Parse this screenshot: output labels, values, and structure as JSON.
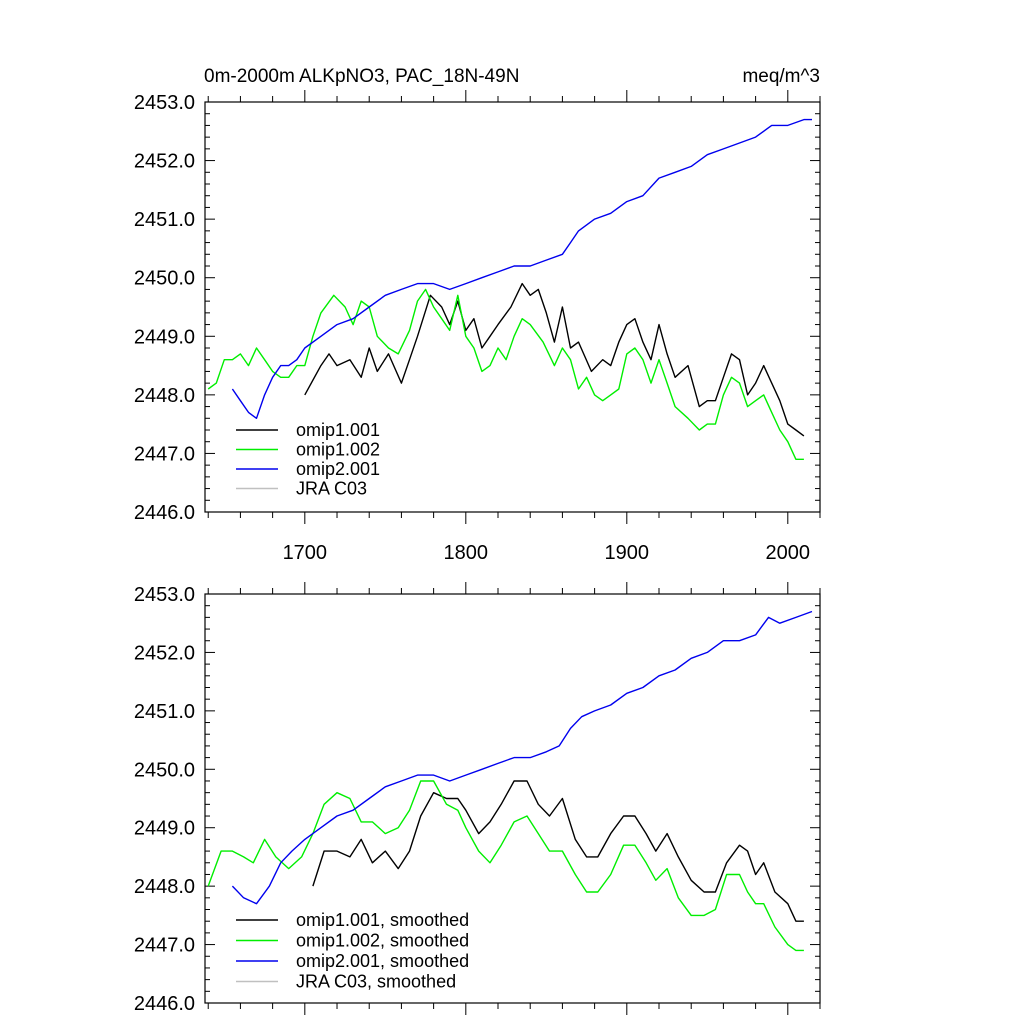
{
  "figure": {
    "title_left": "0m-2000m ALKpNO3, PAC_18N-49N",
    "title_right": "meq/m^3"
  },
  "chart_data": [
    {
      "type": "line",
      "panel": "top",
      "title": "0m-2000m ALKpNO3, PAC_18N-49N",
      "units": "meq/m^3",
      "xlim": [
        1638,
        2020
      ],
      "ylim": [
        2446.0,
        2453.0
      ],
      "x_ticks": [
        1700,
        1800,
        1900,
        2000
      ],
      "x_tick_labels": [
        "1700",
        "1800",
        "1900",
        "2000"
      ],
      "y_ticks": [
        2446.0,
        2447.0,
        2448.0,
        2449.0,
        2450.0,
        2451.0,
        2452.0,
        2453.0
      ],
      "y_tick_labels": [
        "2446.0",
        "2447.0",
        "2448.0",
        "2449.0",
        "2450.0",
        "2451.0",
        "2452.0",
        "2453.0"
      ],
      "grid": false,
      "legend_position": "bottom-left",
      "series": [
        {
          "name": "omip1.001",
          "color": "#000000",
          "x": [
            1700,
            1710,
            1715,
            1720,
            1728,
            1735,
            1740,
            1745,
            1752,
            1760,
            1765,
            1770,
            1778,
            1785,
            1790,
            1795,
            1800,
            1805,
            1810,
            1815,
            1820,
            1828,
            1835,
            1840,
            1845,
            1850,
            1855,
            1860,
            1865,
            1870,
            1878,
            1885,
            1890,
            1895,
            1900,
            1905,
            1910,
            1915,
            1920,
            1925,
            1930,
            1938,
            1945,
            1950,
            1955,
            1960,
            1965,
            1970,
            1975,
            1980,
            1985,
            1990,
            1995,
            2000,
            2005,
            2010
          ],
          "y": [
            2448.0,
            2448.5,
            2448.7,
            2448.5,
            2448.6,
            2448.3,
            2448.8,
            2448.4,
            2448.7,
            2448.2,
            2448.6,
            2449.0,
            2449.7,
            2449.5,
            2449.2,
            2449.6,
            2449.1,
            2449.3,
            2448.8,
            2449.0,
            2449.2,
            2449.5,
            2449.9,
            2449.7,
            2449.8,
            2449.4,
            2448.9,
            2449.5,
            2448.8,
            2448.9,
            2448.4,
            2448.6,
            2448.5,
            2448.9,
            2449.2,
            2449.3,
            2448.9,
            2448.6,
            2449.2,
            2448.7,
            2448.3,
            2448.5,
            2447.8,
            2447.9,
            2447.9,
            2448.3,
            2448.7,
            2448.6,
            2448.0,
            2448.2,
            2448.5,
            2448.2,
            2447.9,
            2447.5,
            2447.4,
            2447.3
          ]
        },
        {
          "name": "omip1.002",
          "color": "#00ee00",
          "x": [
            1640,
            1645,
            1650,
            1655,
            1660,
            1665,
            1670,
            1675,
            1680,
            1685,
            1690,
            1695,
            1700,
            1705,
            1710,
            1718,
            1725,
            1730,
            1735,
            1740,
            1745,
            1752,
            1758,
            1765,
            1770,
            1775,
            1780,
            1785,
            1790,
            1795,
            1800,
            1805,
            1810,
            1815,
            1820,
            1825,
            1830,
            1835,
            1840,
            1848,
            1855,
            1860,
            1865,
            1870,
            1875,
            1880,
            1885,
            1890,
            1895,
            1900,
            1905,
            1910,
            1915,
            1920,
            1925,
            1930,
            1938,
            1945,
            1950,
            1955,
            1960,
            1965,
            1970,
            1975,
            1980,
            1985,
            1990,
            1995,
            2000,
            2005,
            2010
          ],
          "y": [
            2448.1,
            2448.2,
            2448.6,
            2448.6,
            2448.7,
            2448.5,
            2448.8,
            2448.6,
            2448.4,
            2448.3,
            2448.3,
            2448.5,
            2448.5,
            2449.0,
            2449.4,
            2449.7,
            2449.5,
            2449.2,
            2449.6,
            2449.5,
            2449.0,
            2448.8,
            2448.7,
            2449.1,
            2449.6,
            2449.8,
            2449.5,
            2449.3,
            2449.1,
            2449.7,
            2449.0,
            2448.8,
            2448.4,
            2448.5,
            2448.8,
            2448.6,
            2449.0,
            2449.3,
            2449.2,
            2448.9,
            2448.5,
            2448.8,
            2448.6,
            2448.1,
            2448.3,
            2448.0,
            2447.9,
            2448.0,
            2448.1,
            2448.7,
            2448.8,
            2448.6,
            2448.2,
            2448.6,
            2448.2,
            2447.8,
            2447.6,
            2447.4,
            2447.5,
            2447.5,
            2448.0,
            2448.3,
            2448.2,
            2447.8,
            2447.9,
            2448.0,
            2447.7,
            2447.4,
            2447.2,
            2446.9,
            2446.9
          ]
        },
        {
          "name": "omip2.001",
          "color": "#0000ee",
          "x": [
            1655,
            1660,
            1665,
            1670,
            1675,
            1680,
            1685,
            1690,
            1695,
            1700,
            1710,
            1720,
            1730,
            1740,
            1750,
            1760,
            1770,
            1780,
            1790,
            1800,
            1810,
            1820,
            1830,
            1840,
            1850,
            1860,
            1865,
            1870,
            1880,
            1890,
            1900,
            1910,
            1920,
            1930,
            1940,
            1950,
            1960,
            1970,
            1980,
            1990,
            2000,
            2010,
            2015
          ],
          "y": [
            2448.1,
            2447.9,
            2447.7,
            2447.6,
            2448.0,
            2448.3,
            2448.5,
            2448.5,
            2448.6,
            2448.8,
            2449.0,
            2449.2,
            2449.3,
            2449.5,
            2449.7,
            2449.8,
            2449.9,
            2449.9,
            2449.8,
            2449.9,
            2450.0,
            2450.1,
            2450.2,
            2450.2,
            2450.3,
            2450.4,
            2450.6,
            2450.8,
            2451.0,
            2451.1,
            2451.3,
            2451.4,
            2451.7,
            2451.8,
            2451.9,
            2452.1,
            2452.2,
            2452.3,
            2452.4,
            2452.6,
            2452.6,
            2452.7,
            2452.7
          ]
        },
        {
          "name": "JRA C03",
          "color": "#c0c0c0",
          "x": [],
          "y": []
        }
      ]
    },
    {
      "type": "line",
      "panel": "bottom",
      "title": "",
      "xlim": [
        1638,
        2020
      ],
      "ylim": [
        2446.0,
        2453.0
      ],
      "x_ticks": [
        1700,
        1800,
        1900,
        2000
      ],
      "x_tick_labels": [],
      "y_ticks": [
        2446.0,
        2447.0,
        2448.0,
        2449.0,
        2450.0,
        2451.0,
        2452.0,
        2453.0
      ],
      "y_tick_labels": [
        "2446.0",
        "2447.0",
        "2448.0",
        "2449.0",
        "2450.0",
        "2451.0",
        "2452.0",
        "2453.0"
      ],
      "grid": false,
      "legend_position": "bottom-left",
      "series": [
        {
          "name": "omip1.001, smoothed",
          "color": "#000000",
          "x": [
            1705,
            1712,
            1720,
            1728,
            1735,
            1742,
            1750,
            1758,
            1765,
            1772,
            1780,
            1788,
            1795,
            1800,
            1808,
            1815,
            1822,
            1830,
            1838,
            1845,
            1852,
            1860,
            1868,
            1875,
            1882,
            1890,
            1898,
            1905,
            1912,
            1918,
            1925,
            1932,
            1940,
            1948,
            1955,
            1962,
            1970,
            1975,
            1980,
            1985,
            1992,
            2000,
            2005,
            2010
          ],
          "y": [
            2448.0,
            2448.6,
            2448.6,
            2448.5,
            2448.8,
            2448.4,
            2448.6,
            2448.3,
            2448.6,
            2449.2,
            2449.6,
            2449.5,
            2449.5,
            2449.3,
            2448.9,
            2449.1,
            2449.4,
            2449.8,
            2449.8,
            2449.4,
            2449.2,
            2449.5,
            2448.8,
            2448.5,
            2448.5,
            2448.9,
            2449.2,
            2449.2,
            2448.9,
            2448.6,
            2448.9,
            2448.5,
            2448.1,
            2447.9,
            2447.9,
            2448.4,
            2448.7,
            2448.6,
            2448.2,
            2448.4,
            2447.9,
            2447.7,
            2447.4,
            2447.4
          ]
        },
        {
          "name": "omip1.002, smoothed",
          "color": "#00ee00",
          "x": [
            1640,
            1648,
            1655,
            1662,
            1668,
            1675,
            1682,
            1690,
            1698,
            1705,
            1712,
            1720,
            1728,
            1735,
            1742,
            1750,
            1758,
            1765,
            1772,
            1780,
            1788,
            1795,
            1800,
            1808,
            1815,
            1822,
            1830,
            1838,
            1845,
            1852,
            1860,
            1868,
            1875,
            1882,
            1890,
            1898,
            1905,
            1912,
            1918,
            1925,
            1932,
            1940,
            1948,
            1955,
            1962,
            1970,
            1975,
            1980,
            1985,
            1992,
            2000,
            2005,
            2010
          ],
          "y": [
            2448.0,
            2448.6,
            2448.6,
            2448.5,
            2448.4,
            2448.8,
            2448.5,
            2448.3,
            2448.5,
            2448.9,
            2449.4,
            2449.6,
            2449.5,
            2449.1,
            2449.1,
            2448.9,
            2449.0,
            2449.3,
            2449.8,
            2449.8,
            2449.4,
            2449.3,
            2449.0,
            2448.6,
            2448.4,
            2448.7,
            2449.1,
            2449.2,
            2448.9,
            2448.6,
            2448.6,
            2448.2,
            2447.9,
            2447.9,
            2448.2,
            2448.7,
            2448.7,
            2448.4,
            2448.1,
            2448.3,
            2447.8,
            2447.5,
            2447.5,
            2447.6,
            2448.2,
            2448.2,
            2447.9,
            2447.7,
            2447.7,
            2447.3,
            2447.0,
            2446.9,
            2446.9
          ]
        },
        {
          "name": "omip2.001, smoothed",
          "color": "#0000ee",
          "x": [
            1655,
            1662,
            1670,
            1678,
            1685,
            1692,
            1700,
            1710,
            1720,
            1730,
            1740,
            1750,
            1760,
            1770,
            1780,
            1790,
            1800,
            1810,
            1820,
            1830,
            1840,
            1850,
            1858,
            1865,
            1872,
            1880,
            1890,
            1900,
            1910,
            1920,
            1930,
            1940,
            1950,
            1960,
            1970,
            1980,
            1988,
            1995,
            2005,
            2015
          ],
          "y": [
            2448.0,
            2447.8,
            2447.7,
            2448.0,
            2448.4,
            2448.6,
            2448.8,
            2449.0,
            2449.2,
            2449.3,
            2449.5,
            2449.7,
            2449.8,
            2449.9,
            2449.9,
            2449.8,
            2449.9,
            2450.0,
            2450.1,
            2450.2,
            2450.2,
            2450.3,
            2450.4,
            2450.7,
            2450.9,
            2451.0,
            2451.1,
            2451.3,
            2451.4,
            2451.6,
            2451.7,
            2451.9,
            2452.0,
            2452.2,
            2452.2,
            2452.3,
            2452.6,
            2452.5,
            2452.6,
            2452.7
          ]
        },
        {
          "name": "JRA C03, smoothed",
          "color": "#c0c0c0",
          "x": [],
          "y": []
        }
      ]
    }
  ]
}
